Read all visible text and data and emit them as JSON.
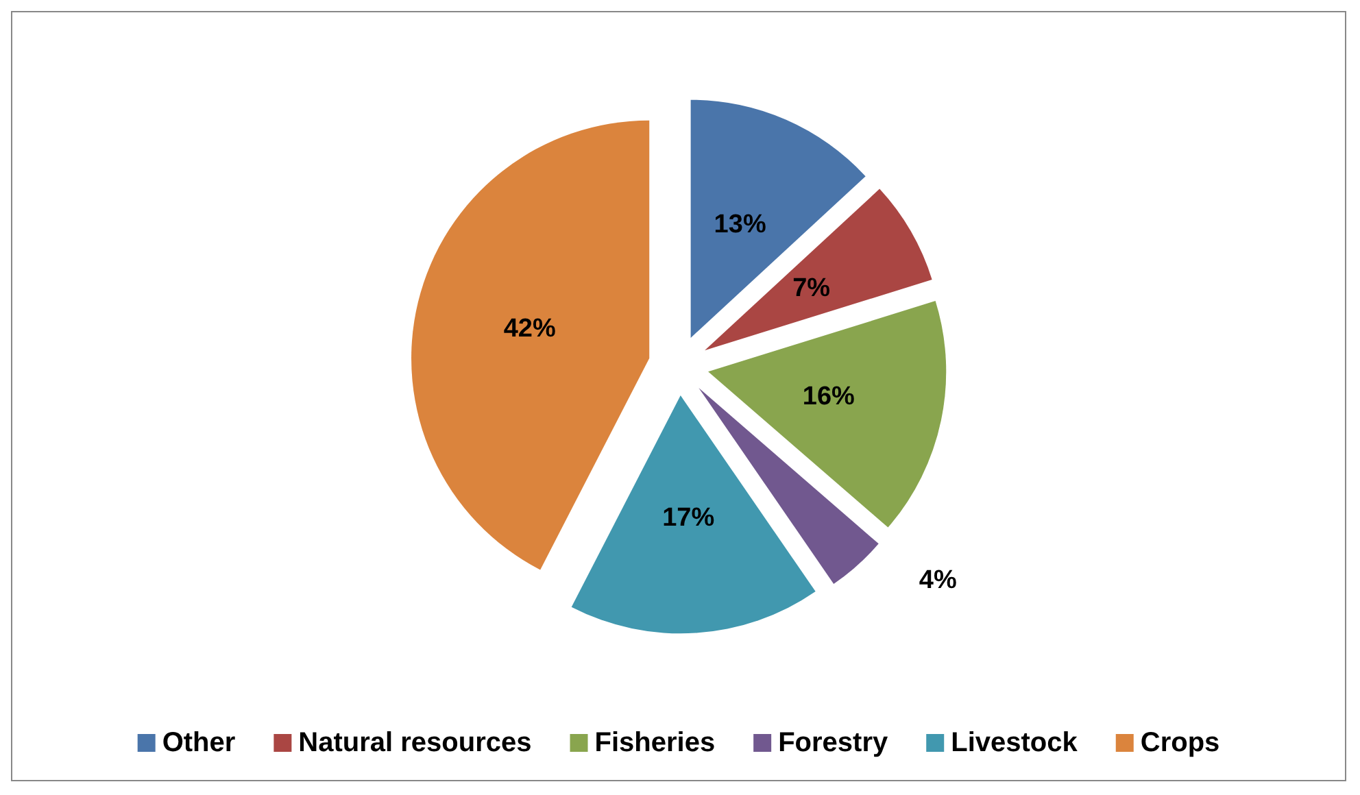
{
  "chart_data": {
    "type": "pie",
    "categories": [
      "Other",
      "Natural resources",
      "Fisheries",
      "Forestry",
      "Livestock",
      "Crops"
    ],
    "values": [
      13,
      7,
      16,
      4,
      17,
      42
    ],
    "colors": [
      "#4a75aa",
      "#aa4643",
      "#89a54e",
      "#71588f",
      "#4198af",
      "#db843d"
    ],
    "value_labels": [
      "13%",
      "7%",
      "16%",
      "4%",
      "17%",
      "42%"
    ],
    "legend": "bottom"
  }
}
